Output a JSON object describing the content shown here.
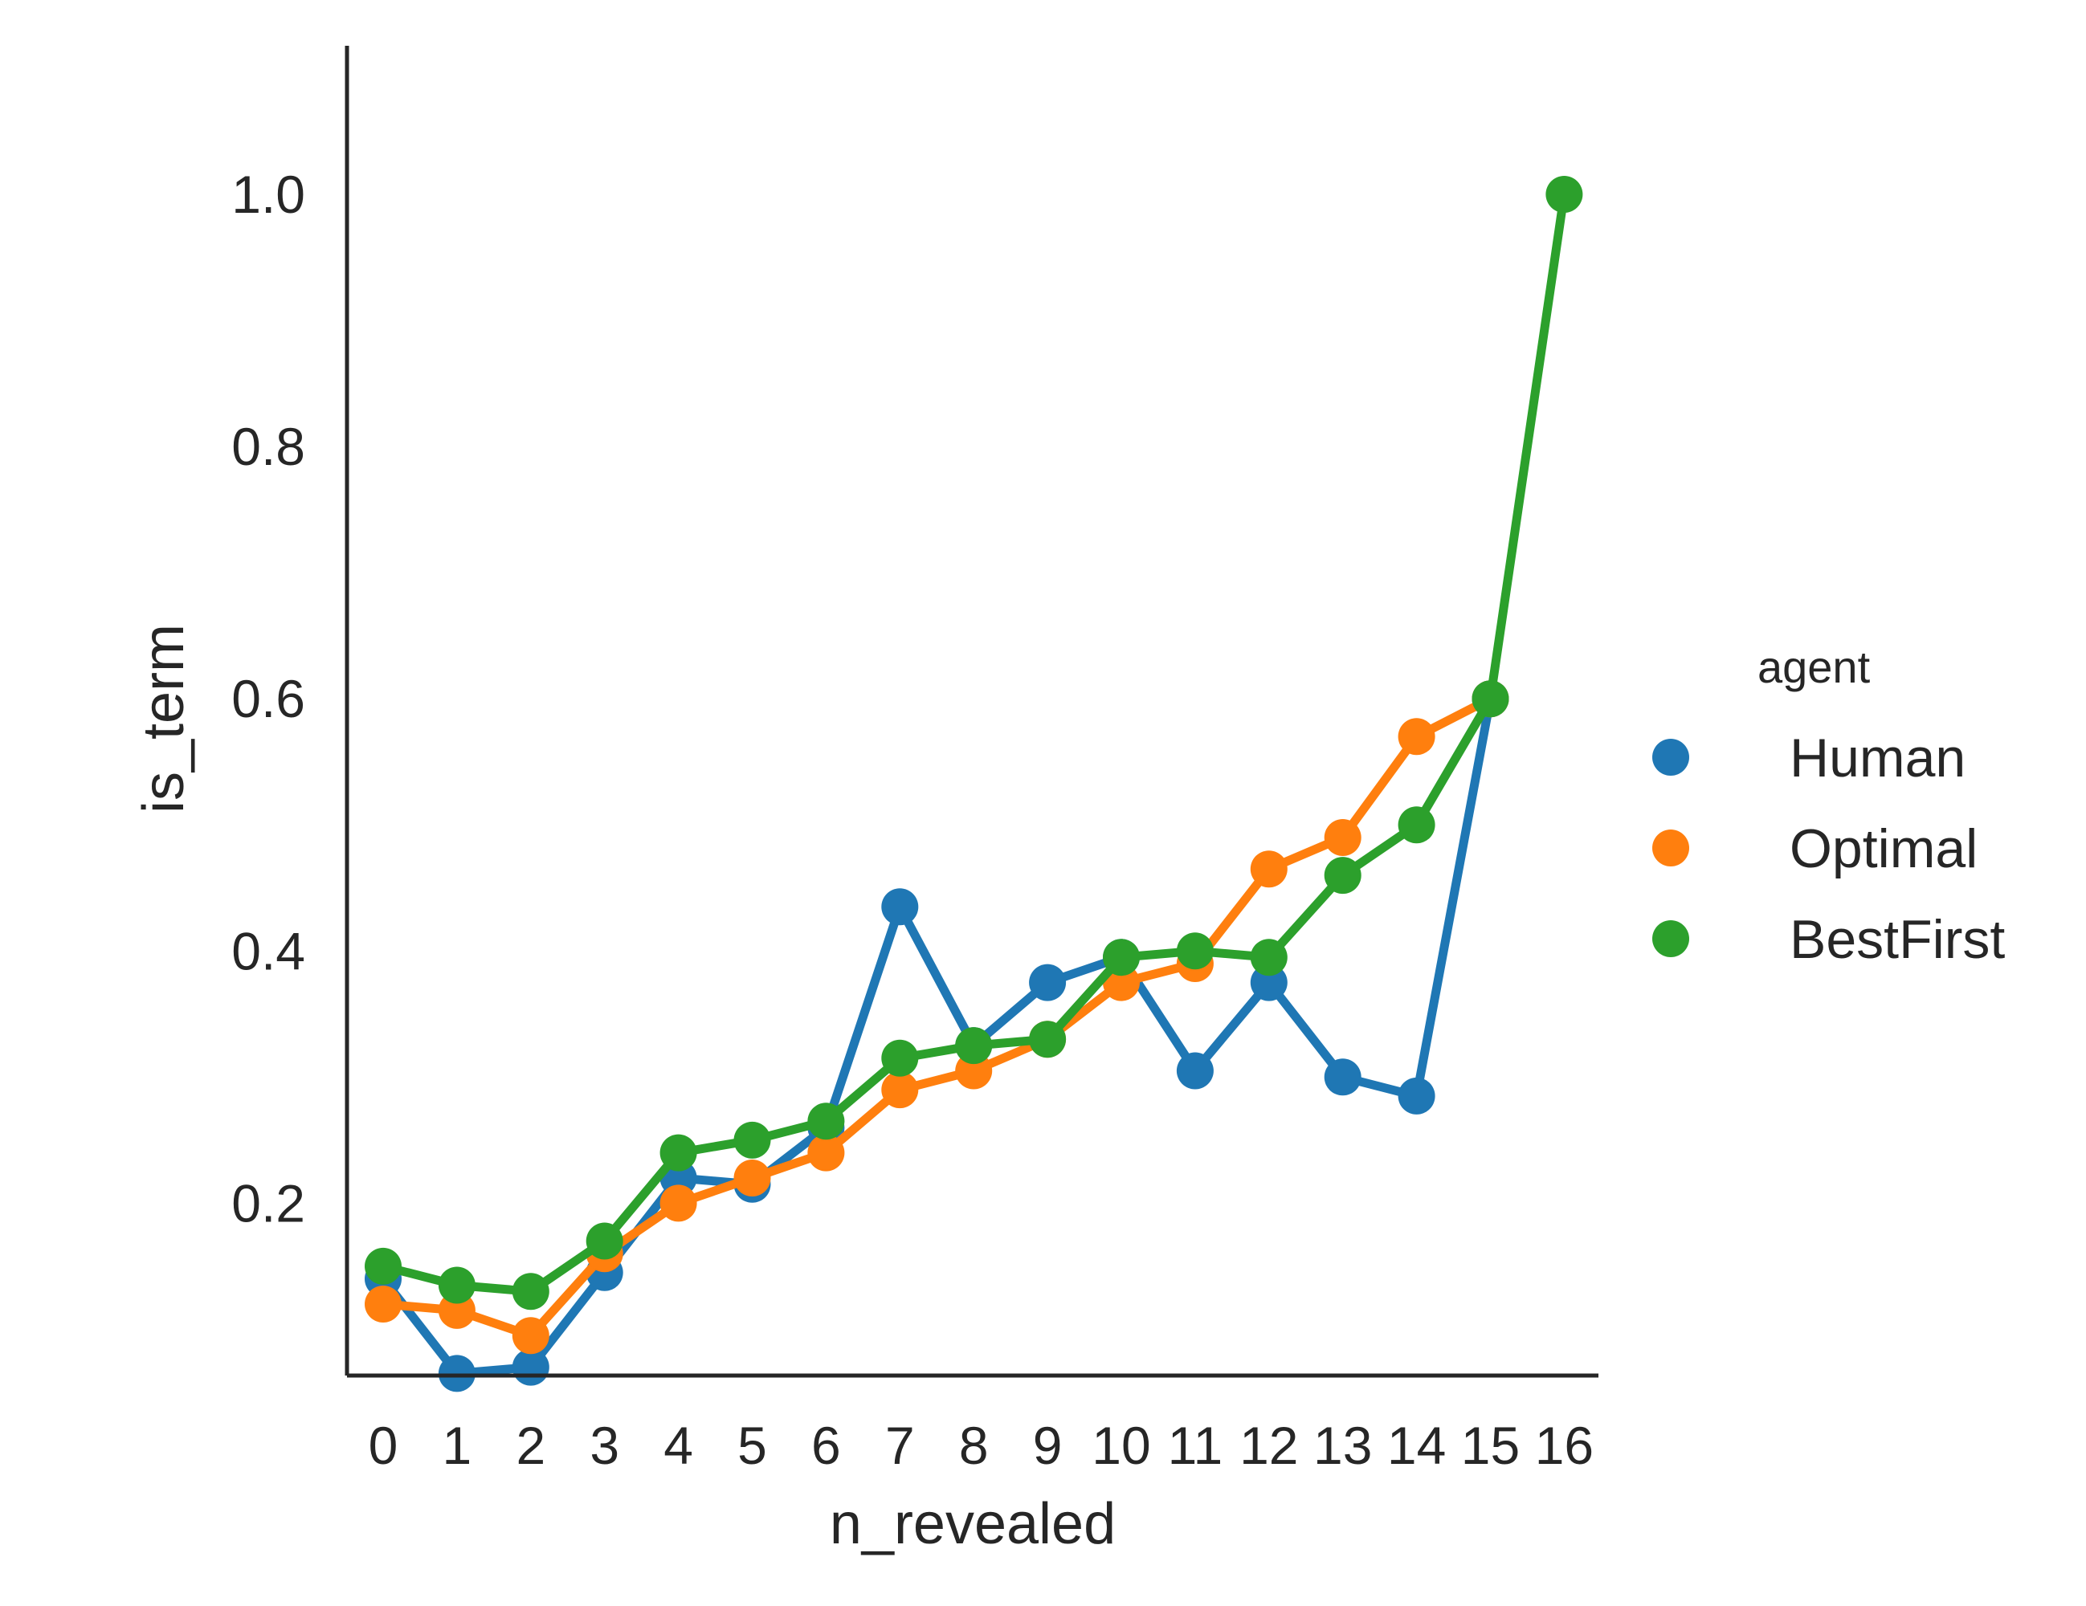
{
  "chart_data": {
    "type": "line",
    "xlabel": "n_revealed",
    "ylabel": "is_term",
    "x": [
      0,
      1,
      2,
      3,
      4,
      5,
      6,
      7,
      8,
      9,
      10,
      11,
      12,
      13,
      14,
      15,
      16
    ],
    "x_tick_labels": [
      "0",
      "1",
      "2",
      "3",
      "4",
      "5",
      "6",
      "7",
      "8",
      "9",
      "10",
      "11",
      "12",
      "13",
      "14",
      "15",
      "16"
    ],
    "y_ticks": [
      0.2,
      0.4,
      0.6,
      0.8,
      1.0
    ],
    "y_tick_labels": [
      "0.2",
      "0.4",
      "0.6",
      "0.8",
      "1.0"
    ],
    "ylim": [
      0.0,
      1.06
    ],
    "grid": false,
    "legend": {
      "title": "agent",
      "placement": "right"
    },
    "series": [
      {
        "name": "Human",
        "color": "#1f77b4",
        "values": [
          0.14,
          0.065,
          0.07,
          0.145,
          0.22,
          0.215,
          0.26,
          0.435,
          0.325,
          0.375,
          0.395,
          0.305,
          0.375,
          0.3,
          0.285,
          0.6,
          null
        ]
      },
      {
        "name": "Optimal",
        "color": "#ff7f0e",
        "values": [
          0.12,
          0.115,
          0.095,
          0.16,
          0.2,
          0.22,
          0.24,
          0.29,
          0.305,
          0.33,
          0.375,
          0.39,
          0.465,
          0.49,
          0.57,
          0.6,
          null
        ]
      },
      {
        "name": "BestFirst",
        "color": "#2ca02c",
        "values": [
          0.15,
          0.135,
          0.13,
          0.17,
          0.24,
          0.25,
          0.265,
          0.315,
          0.325,
          0.33,
          0.395,
          0.4,
          0.395,
          0.46,
          0.5,
          0.6,
          1.0
        ]
      }
    ]
  }
}
